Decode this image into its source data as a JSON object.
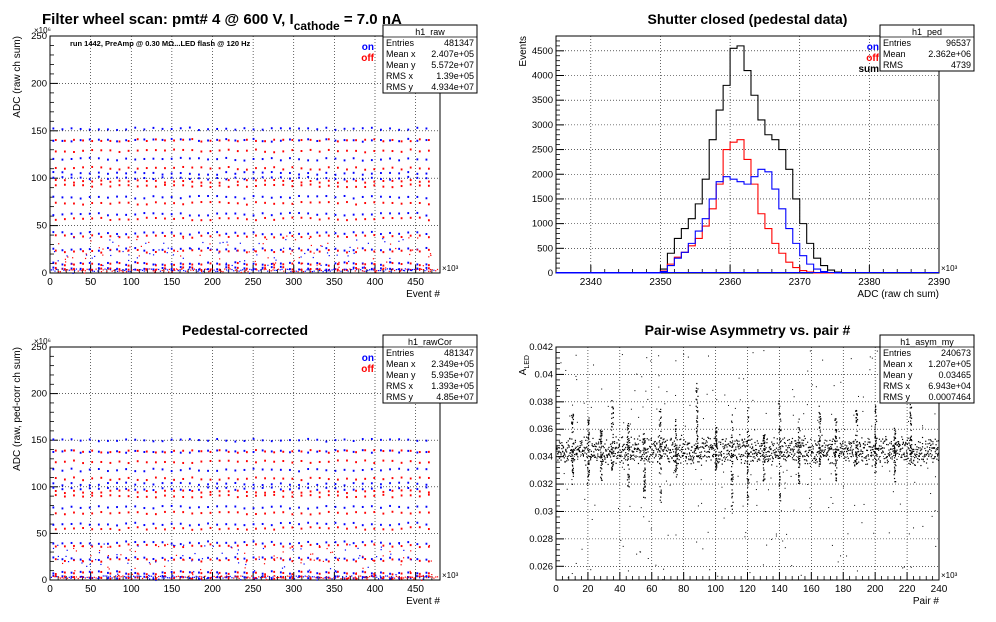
{
  "page": {
    "title_main": "Filter wheel scan: pmt#   4 @   600 V, I",
    "title_sub": "cathode",
    "title_tail": " = 7.0 nA"
  },
  "chart_data": [
    {
      "id": "raw",
      "type": "scatter",
      "title": "",
      "annotation": "run 1442, PreAmp @ 0.30 MΩ...LED flash @  120 Hz",
      "xlabel": "Event #",
      "ylabel": "ADC (raw ch sum)",
      "x_exponent": "×10³",
      "y_exponent": "×10⁶",
      "xlim": [
        0,
        480
      ],
      "ylim": [
        0,
        250
      ],
      "xticks": [
        0,
        50,
        100,
        150,
        200,
        250,
        300,
        350,
        400,
        450
      ],
      "yticks": [
        0,
        50,
        100,
        150,
        200,
        250
      ],
      "grid": true,
      "legend": [
        {
          "label": "on",
          "color": "#0000ff"
        },
        {
          "label": "off",
          "color": "#ff0000"
        }
      ],
      "levels": [
        152,
        140,
        120,
        105,
        100,
        80,
        62,
        42,
        25,
        10,
        5
      ],
      "stats": {
        "name": "h1_raw",
        "rows": [
          [
            "Entries",
            "481347"
          ],
          [
            "Mean x",
            "2.407e+05"
          ],
          [
            "Mean y",
            "5.572e+07"
          ],
          [
            "RMS x",
            "1.39e+05"
          ],
          [
            "RMS y",
            "4.934e+07"
          ]
        ]
      }
    },
    {
      "id": "ped",
      "type": "line",
      "title": "Shutter closed (pedestal data)",
      "xlabel": "ADC (raw ch sum)",
      "ylabel": "Events",
      "x_exponent": "×10³",
      "xlim": [
        2335,
        2390
      ],
      "ylim": [
        0,
        4800
      ],
      "xticks": [
        2340,
        2350,
        2360,
        2370,
        2380,
        2390
      ],
      "yticks": [
        0,
        500,
        1000,
        1500,
        2000,
        2500,
        3000,
        3500,
        4000,
        4500
      ],
      "grid": true,
      "legend": [
        {
          "label": "on",
          "color": "#0000ff"
        },
        {
          "label": "off",
          "color": "#ff0000"
        },
        {
          "label": "sum",
          "color": "#000000"
        }
      ],
      "bin_start": 2350,
      "bin_width": 1,
      "series": [
        {
          "name": "sum",
          "color": "#000000",
          "values": [
            80,
            400,
            700,
            900,
            1100,
            1400,
            1900,
            2700,
            3300,
            3800,
            4550,
            4600,
            4100,
            3600,
            3100,
            2800,
            2700,
            2500,
            2100,
            1500,
            1000,
            600,
            300,
            150,
            60,
            20
          ]
        },
        {
          "name": "off",
          "color": "#ff0000",
          "values": [
            40,
            180,
            320,
            420,
            550,
            700,
            950,
            1300,
            1800,
            2500,
            2650,
            2700,
            2300,
            1800,
            1200,
            900,
            600,
            400,
            220,
            110,
            50,
            20,
            0,
            0,
            0,
            0
          ]
        },
        {
          "name": "on",
          "color": "#0000ff",
          "values": [
            30,
            150,
            300,
            420,
            600,
            850,
            1100,
            1500,
            1850,
            1950,
            1900,
            1850,
            1800,
            1950,
            2100,
            2050,
            1700,
            1300,
            900,
            600,
            350,
            180,
            80,
            30,
            10,
            0
          ]
        }
      ],
      "stats": {
        "name": "h1_ped",
        "rows": [
          [
            "Entries",
            "96537"
          ],
          [
            "Mean",
            "2.362e+06"
          ],
          [
            "RMS",
            "4739"
          ]
        ]
      }
    },
    {
      "id": "rawcor",
      "type": "scatter",
      "title": "Pedestal-corrected",
      "xlabel": "Event #",
      "ylabel": "ADC (raw, ped-corr ch sum)",
      "x_exponent": "×10³",
      "y_exponent": "×10⁶",
      "xlim": [
        0,
        480
      ],
      "ylim": [
        0,
        250
      ],
      "xticks": [
        0,
        50,
        100,
        150,
        200,
        250,
        300,
        350,
        400,
        450
      ],
      "yticks": [
        0,
        50,
        100,
        150,
        200,
        250
      ],
      "grid": true,
      "legend": [
        {
          "label": "on",
          "color": "#0000ff"
        },
        {
          "label": "off",
          "color": "#ff0000"
        }
      ],
      "levels": [
        150,
        138,
        118,
        103,
        98,
        78,
        60,
        40,
        23,
        8,
        3
      ],
      "stats": {
        "name": "h1_rawCor",
        "rows": [
          [
            "Entries",
            "481347"
          ],
          [
            "Mean x",
            "2.349e+05"
          ],
          [
            "Mean y",
            "5.935e+07"
          ],
          [
            "RMS x",
            "1.393e+05"
          ],
          [
            "RMS y",
            "4.85e+07"
          ]
        ]
      }
    },
    {
      "id": "asym",
      "type": "scatter",
      "title": "Pair-wise Asymmetry vs. pair #",
      "xlabel": "Pair #",
      "ylabel": "A",
      "ylabel_sub": "LED",
      "x_exponent": "×10³",
      "xlim": [
        0,
        240
      ],
      "ylim": [
        0.025,
        0.042
      ],
      "xticks": [
        0,
        20,
        40,
        60,
        80,
        100,
        120,
        140,
        160,
        180,
        200,
        220,
        240
      ],
      "yticks": [
        0.026,
        0.028,
        0.03,
        0.032,
        0.034,
        0.036,
        0.038,
        0.04,
        0.042
      ],
      "grid": true,
      "band_center": 0.0345,
      "band_halfwidth": 0.0008,
      "spikes": [
        {
          "x": 10,
          "high": 0.0375,
          "low": 0.032
        },
        {
          "x": 20,
          "high": 0.037,
          "low": 0.0315
        },
        {
          "x": 28,
          "high": 0.036,
          "low": 0.0322
        },
        {
          "x": 35,
          "high": 0.0385,
          "low": 0.033
        },
        {
          "x": 45,
          "high": 0.0365,
          "low": 0.0318
        },
        {
          "x": 55,
          "high": 0.036,
          "low": 0.031
        },
        {
          "x": 65,
          "high": 0.038,
          "low": 0.0305
        },
        {
          "x": 75,
          "high": 0.0368,
          "low": 0.0325
        },
        {
          "x": 88,
          "high": 0.0395,
          "low": 0.0335
        },
        {
          "x": 100,
          "high": 0.0362,
          "low": 0.033
        },
        {
          "x": 110,
          "high": 0.0372,
          "low": 0.0302
        },
        {
          "x": 120,
          "high": 0.038,
          "low": 0.0305
        },
        {
          "x": 130,
          "high": 0.0358,
          "low": 0.0322
        },
        {
          "x": 140,
          "high": 0.0383,
          "low": 0.0308
        },
        {
          "x": 152,
          "high": 0.0368,
          "low": 0.032
        },
        {
          "x": 165,
          "high": 0.0378,
          "low": 0.0322
        },
        {
          "x": 175,
          "high": 0.037,
          "low": 0.0322
        },
        {
          "x": 188,
          "high": 0.0375,
          "low": 0.0332
        },
        {
          "x": 200,
          "high": 0.0378,
          "low": 0.0328
        },
        {
          "x": 212,
          "high": 0.0362,
          "low": 0.0322
        },
        {
          "x": 222,
          "high": 0.038,
          "low": 0.0332
        }
      ],
      "stats": {
        "name": "h1_asym_my",
        "rows": [
          [
            "Entries",
            "240673"
          ],
          [
            "Mean x",
            "1.207e+05"
          ],
          [
            "Mean y",
            "0.03465"
          ],
          [
            "RMS x",
            "6.943e+04"
          ],
          [
            "RMS y",
            "0.0007464"
          ]
        ]
      }
    }
  ]
}
